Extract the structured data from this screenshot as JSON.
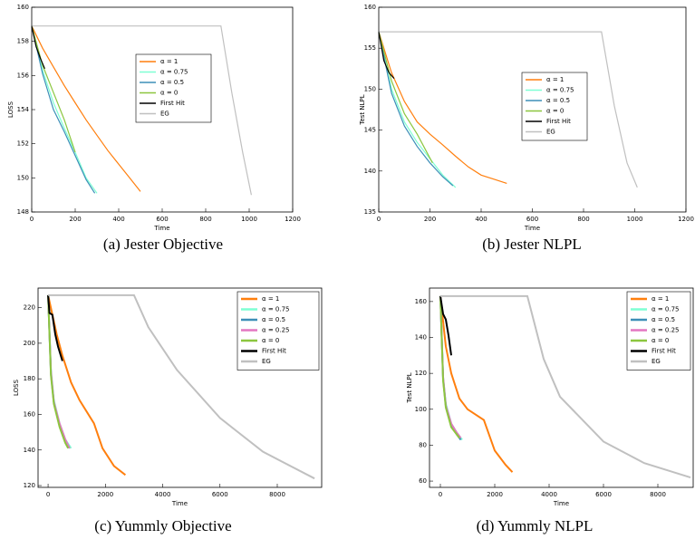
{
  "chart_data": [
    {
      "type": "line",
      "caption": "(a) Jester Objective",
      "xlabel": "Time",
      "ylabel": "LOSS",
      "xlim": [
        0,
        1200
      ],
      "xticks": [
        0,
        200,
        400,
        600,
        800,
        1000,
        1200
      ],
      "ylim": [
        148,
        160
      ],
      "yticks": [
        148,
        150,
        152,
        154,
        156,
        158,
        160
      ],
      "legend": "center",
      "series": [
        {
          "name": "α = 1",
          "color": "#ff7f0e",
          "x": [
            0,
            50,
            100,
            150,
            200,
            250,
            300,
            350,
            400,
            450,
            500
          ],
          "values": [
            158.9,
            157.6,
            156.5,
            155.4,
            154.4,
            153.4,
            152.5,
            151.6,
            150.8,
            150.0,
            149.2
          ]
        },
        {
          "name": "α = 0.75",
          "color": "#7fffd4",
          "x": [
            0,
            50,
            100,
            150,
            200,
            250,
            300
          ],
          "values": [
            158.9,
            156.3,
            154.4,
            152.9,
            151.5,
            150.0,
            149.1
          ]
        },
        {
          "name": "α = 0.5",
          "color": "#3d8fb8",
          "x": [
            0,
            50,
            100,
            150,
            200,
            250,
            290
          ],
          "values": [
            158.9,
            156.1,
            154.0,
            152.7,
            151.3,
            149.9,
            149.1
          ]
        },
        {
          "name": "α = 0",
          "color": "#8cc63f",
          "x": [
            0,
            50,
            100,
            150,
            200
          ],
          "values": [
            158.9,
            156.6,
            155.0,
            153.4,
            151.5
          ]
        },
        {
          "name": "First Hit",
          "color": "#000000",
          "x": [
            0,
            20,
            40,
            60
          ],
          "values": [
            158.9,
            157.7,
            157.0,
            156.4
          ]
        },
        {
          "name": "EG",
          "color": "#c0c0c0",
          "x": [
            0,
            870,
            920,
            970,
            1010
          ],
          "values": [
            158.9,
            158.9,
            155.0,
            151.5,
            149.0
          ]
        }
      ]
    },
    {
      "type": "line",
      "caption": "(b) Jester NLPL",
      "xlabel": "Time",
      "ylabel": "Test NLPL",
      "xlim": [
        0,
        1200
      ],
      "xticks": [
        0,
        200,
        400,
        600,
        800,
        1000,
        1200
      ],
      "ylim": [
        135,
        160
      ],
      "yticks": [
        135,
        140,
        145,
        150,
        155,
        160
      ],
      "legend": "center",
      "series": [
        {
          "name": "α = 1",
          "color": "#ff7f0e",
          "x": [
            0,
            50,
            100,
            150,
            200,
            250,
            300,
            350,
            400,
            450,
            500
          ],
          "values": [
            157,
            152,
            148.5,
            146,
            144.5,
            143.2,
            141.8,
            140.5,
            139.5,
            139,
            138.5
          ]
        },
        {
          "name": "α = 0.75",
          "color": "#7fffd4",
          "x": [
            0,
            50,
            100,
            150,
            200,
            250,
            300
          ],
          "values": [
            157,
            150,
            146,
            143.5,
            141.5,
            139.5,
            138
          ]
        },
        {
          "name": "α = 0.5",
          "color": "#3d8fb8",
          "x": [
            0,
            50,
            100,
            150,
            200,
            250,
            290
          ],
          "values": [
            157,
            149.5,
            145.5,
            143,
            141,
            139.3,
            138.2
          ]
        },
        {
          "name": "α = 0",
          "color": "#8cc63f",
          "x": [
            0,
            50,
            100,
            150,
            210
          ],
          "values": [
            157,
            151,
            147,
            144.5,
            141
          ]
        },
        {
          "name": "First Hit",
          "color": "#000000",
          "x": [
            0,
            20,
            40,
            60
          ],
          "values": [
            157,
            153.5,
            152,
            151.3
          ]
        },
        {
          "name": "EG",
          "color": "#c0c0c0",
          "x": [
            0,
            870,
            920,
            970,
            1010
          ],
          "values": [
            157,
            157,
            148,
            141,
            138
          ]
        }
      ]
    },
    {
      "type": "line",
      "caption": "(c) Yummly Objective",
      "xlabel": "Time",
      "ylabel": "LOSS",
      "xlim": [
        -350,
        9550
      ],
      "xticks": [
        0,
        2000,
        4000,
        6000,
        8000
      ],
      "ylim": [
        119,
        231
      ],
      "yticks": [
        120,
        140,
        160,
        180,
        200,
        220
      ],
      "legend": "upper right",
      "series": [
        {
          "name": "α = 1",
          "color": "#ff7f0e",
          "x": [
            0,
            300,
            500,
            800,
            1100,
            1600,
            1900,
            2300,
            2700
          ],
          "values": [
            227,
            205,
            193,
            178,
            168,
            155,
            141,
            131,
            126
          ]
        },
        {
          "name": "α = 0.75",
          "color": "#7fffd4",
          "x": [
            0,
            100,
            200,
            400,
            600,
            800
          ],
          "values": [
            227,
            185,
            168,
            155,
            146,
            141
          ]
        },
        {
          "name": "α = 0.5",
          "color": "#3d8fb8",
          "x": [
            0,
            100,
            200,
            400,
            600,
            750
          ],
          "values": [
            227,
            183,
            167,
            154,
            145,
            141
          ]
        },
        {
          "name": "α = 0.25",
          "color": "#e377c2",
          "x": [
            0,
            100,
            200,
            400,
            600,
            750
          ],
          "values": [
            227,
            184,
            167,
            155,
            146,
            141
          ]
        },
        {
          "name": "α = 0",
          "color": "#8cc63f",
          "x": [
            0,
            100,
            200,
            400,
            600,
            700
          ],
          "values": [
            227,
            182,
            166,
            153,
            144,
            141
          ]
        },
        {
          "name": "First Hit",
          "color": "#000000",
          "x": [
            0,
            50,
            150,
            250,
            350,
            500
          ],
          "values": [
            227,
            217,
            216,
            205,
            198,
            190
          ]
        },
        {
          "name": "EG",
          "color": "#c0c0c0",
          "x": [
            0,
            3000,
            3500,
            4500,
            6000,
            7500,
            9300
          ],
          "values": [
            227,
            227,
            209,
            185,
            158,
            139,
            124
          ]
        }
      ]
    },
    {
      "type": "line",
      "caption": "(d) Yummly NLPL",
      "xlabel": "Time",
      "ylabel": "Test NLPL",
      "xlim": [
        -400,
        9300
      ],
      "xticks": [
        0,
        2000,
        4000,
        6000,
        8000
      ],
      "ylim": [
        56.5,
        167.5
      ],
      "yticks": [
        60,
        80,
        100,
        120,
        140,
        160
      ],
      "legend": "upper right",
      "series": [
        {
          "name": "α = 1",
          "color": "#ff7f0e",
          "x": [
            0,
            200,
            400,
            700,
            1000,
            1600,
            2000,
            2400,
            2650
          ],
          "values": [
            163,
            135,
            120,
            106,
            100,
            94,
            77,
            69,
            65
          ]
        },
        {
          "name": "α = 0.75",
          "color": "#7fffd4",
          "x": [
            0,
            100,
            200,
            400,
            600,
            800
          ],
          "values": [
            163,
            118,
            103,
            92,
            87,
            83
          ]
        },
        {
          "name": "α = 0.5",
          "color": "#3d8fb8",
          "x": [
            0,
            100,
            200,
            400,
            600,
            750
          ],
          "values": [
            163,
            117,
            102,
            91,
            86,
            83
          ]
        },
        {
          "name": "α = 0.25",
          "color": "#e377c2",
          "x": [
            0,
            100,
            200,
            400,
            600,
            750
          ],
          "values": [
            163,
            118,
            102,
            92,
            87,
            84
          ]
        },
        {
          "name": "α = 0",
          "color": "#8cc63f",
          "x": [
            0,
            100,
            200,
            400,
            600,
            700
          ],
          "values": [
            163,
            116,
            101,
            90,
            86,
            84
          ]
        },
        {
          "name": "First Hit",
          "color": "#000000",
          "x": [
            0,
            100,
            200,
            300,
            400
          ],
          "values": [
            163,
            153,
            150,
            141,
            130
          ]
        },
        {
          "name": "EG",
          "color": "#c0c0c0",
          "x": [
            0,
            3200,
            3800,
            4400,
            6000,
            7500,
            9200
          ],
          "values": [
            163,
            163,
            128,
            107,
            82,
            70,
            62
          ]
        }
      ]
    }
  ]
}
